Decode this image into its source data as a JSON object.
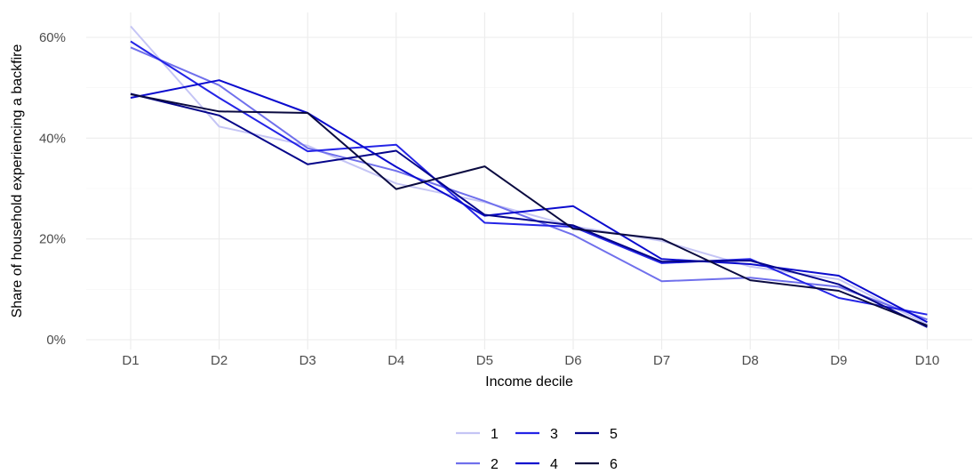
{
  "chart_data": {
    "type": "line",
    "xlabel": "Income decile",
    "ylabel": "Share of household experiencing a backfire",
    "categories": [
      "D1",
      "D2",
      "D3",
      "D4",
      "D5",
      "D6",
      "D7",
      "D8",
      "D9",
      "D10"
    ],
    "ylim": [
      0,
      0.65
    ],
    "yticks": [
      0,
      0.2,
      0.4,
      0.6
    ],
    "ytick_labels": [
      "0%",
      "20%",
      "40%",
      "60%"
    ],
    "grid": true,
    "legend_position": "bottom",
    "series": [
      {
        "name": "1",
        "color": "#c5c5f5",
        "values": [
          0.622,
          0.423,
          0.385,
          0.31,
          0.273,
          0.225,
          0.196,
          0.145,
          0.12,
          0.03
        ]
      },
      {
        "name": "2",
        "color": "#7070ec",
        "values": [
          0.58,
          0.505,
          0.38,
          0.335,
          0.275,
          0.208,
          0.116,
          0.123,
          0.105,
          0.04
        ]
      },
      {
        "name": "3",
        "color": "#2424e6",
        "values": [
          0.592,
          0.48,
          0.374,
          0.387,
          0.232,
          0.224,
          0.152,
          0.16,
          0.083,
          0.05
        ]
      },
      {
        "name": "4",
        "color": "#0b0bce",
        "values": [
          0.48,
          0.515,
          0.45,
          0.343,
          0.246,
          0.265,
          0.16,
          0.15,
          0.127,
          0.035
        ]
      },
      {
        "name": "5",
        "color": "#05058a",
        "values": [
          0.488,
          0.445,
          0.348,
          0.375,
          0.248,
          0.227,
          0.155,
          0.157,
          0.11,
          0.025
        ]
      },
      {
        "name": "6",
        "color": "#0a0a40",
        "values": [
          0.487,
          0.453,
          0.45,
          0.299,
          0.344,
          0.22,
          0.2,
          0.118,
          0.097,
          0.028
        ]
      }
    ]
  }
}
